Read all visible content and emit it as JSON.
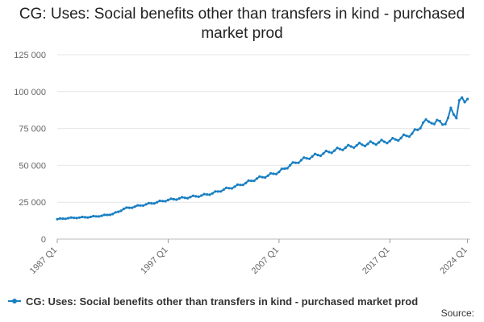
{
  "chart_data": {
    "type": "line",
    "title": "CG: Uses: Social benefits other than transfers in kind - purchased market prod",
    "xlabel": "",
    "ylabel": "",
    "ylim": [
      0,
      125000
    ],
    "yticks": [
      0,
      25000,
      50000,
      75000,
      100000,
      125000
    ],
    "ytick_labels": [
      "0",
      "25 000",
      "50 000",
      "75 000",
      "100 000",
      "125 000"
    ],
    "xticks": [
      {
        "label": "1987 Q1",
        "value": 1987.0
      },
      {
        "label": "1997 Q1",
        "value": 1997.0
      },
      {
        "label": "2007 Q1",
        "value": 2007.0
      },
      {
        "label": "2017 Q1",
        "value": 2017.0
      },
      {
        "label": "2024 Q1",
        "value": 2024.0
      }
    ],
    "xlim": [
      1987.0,
      2024.25
    ],
    "grid": true,
    "legend_position": "bottom-left",
    "series": [
      {
        "name": "CG: Uses: Social benefits other than transfers in kind - purchased market prod",
        "color": "#1a7fc1",
        "points": [
          [
            1987.0,
            13500
          ],
          [
            1988.0,
            14200
          ],
          [
            1989.0,
            14600
          ],
          [
            1990.0,
            15000
          ],
          [
            1991.0,
            15800
          ],
          [
            1992.0,
            17000
          ],
          [
            1992.5,
            18500
          ],
          [
            1993.0,
            20500
          ],
          [
            1994.0,
            22000
          ],
          [
            1995.0,
            23500
          ],
          [
            1996.0,
            25000
          ],
          [
            1997.0,
            26500
          ],
          [
            1998.0,
            27500
          ],
          [
            1999.0,
            28500
          ],
          [
            2000.0,
            29500
          ],
          [
            2001.0,
            31000
          ],
          [
            2002.0,
            33500
          ],
          [
            2003.0,
            35500
          ],
          [
            2004.0,
            38000
          ],
          [
            2005.0,
            41000
          ],
          [
            2006.0,
            43000
          ],
          [
            2007.0,
            45500
          ],
          [
            2008.0,
            50000
          ],
          [
            2009.0,
            53500
          ],
          [
            2010.0,
            56000
          ],
          [
            2011.0,
            58000
          ],
          [
            2012.0,
            60000
          ],
          [
            2013.0,
            62000
          ],
          [
            2014.0,
            63500
          ],
          [
            2015.0,
            64500
          ],
          [
            2016.0,
            65500
          ],
          [
            2017.0,
            66500
          ],
          [
            2018.0,
            68500
          ],
          [
            2019.0,
            71500
          ],
          [
            2019.5,
            74000
          ],
          [
            2020.0,
            79000
          ],
          [
            2020.75,
            80000
          ],
          [
            2021.0,
            78000
          ],
          [
            2021.5,
            80000
          ],
          [
            2022.0,
            78000
          ],
          [
            2022.25,
            80500
          ],
          [
            2022.5,
            89000
          ],
          [
            2022.75,
            86000
          ],
          [
            2023.0,
            82000
          ],
          [
            2023.25,
            92000
          ],
          [
            2023.5,
            96000
          ],
          [
            2023.75,
            94500
          ],
          [
            2024.0,
            95000
          ]
        ]
      }
    ]
  },
  "legend": {
    "label": "CG: Uses: Social benefits other than transfers in kind - purchased market prod"
  },
  "source": "Source:"
}
